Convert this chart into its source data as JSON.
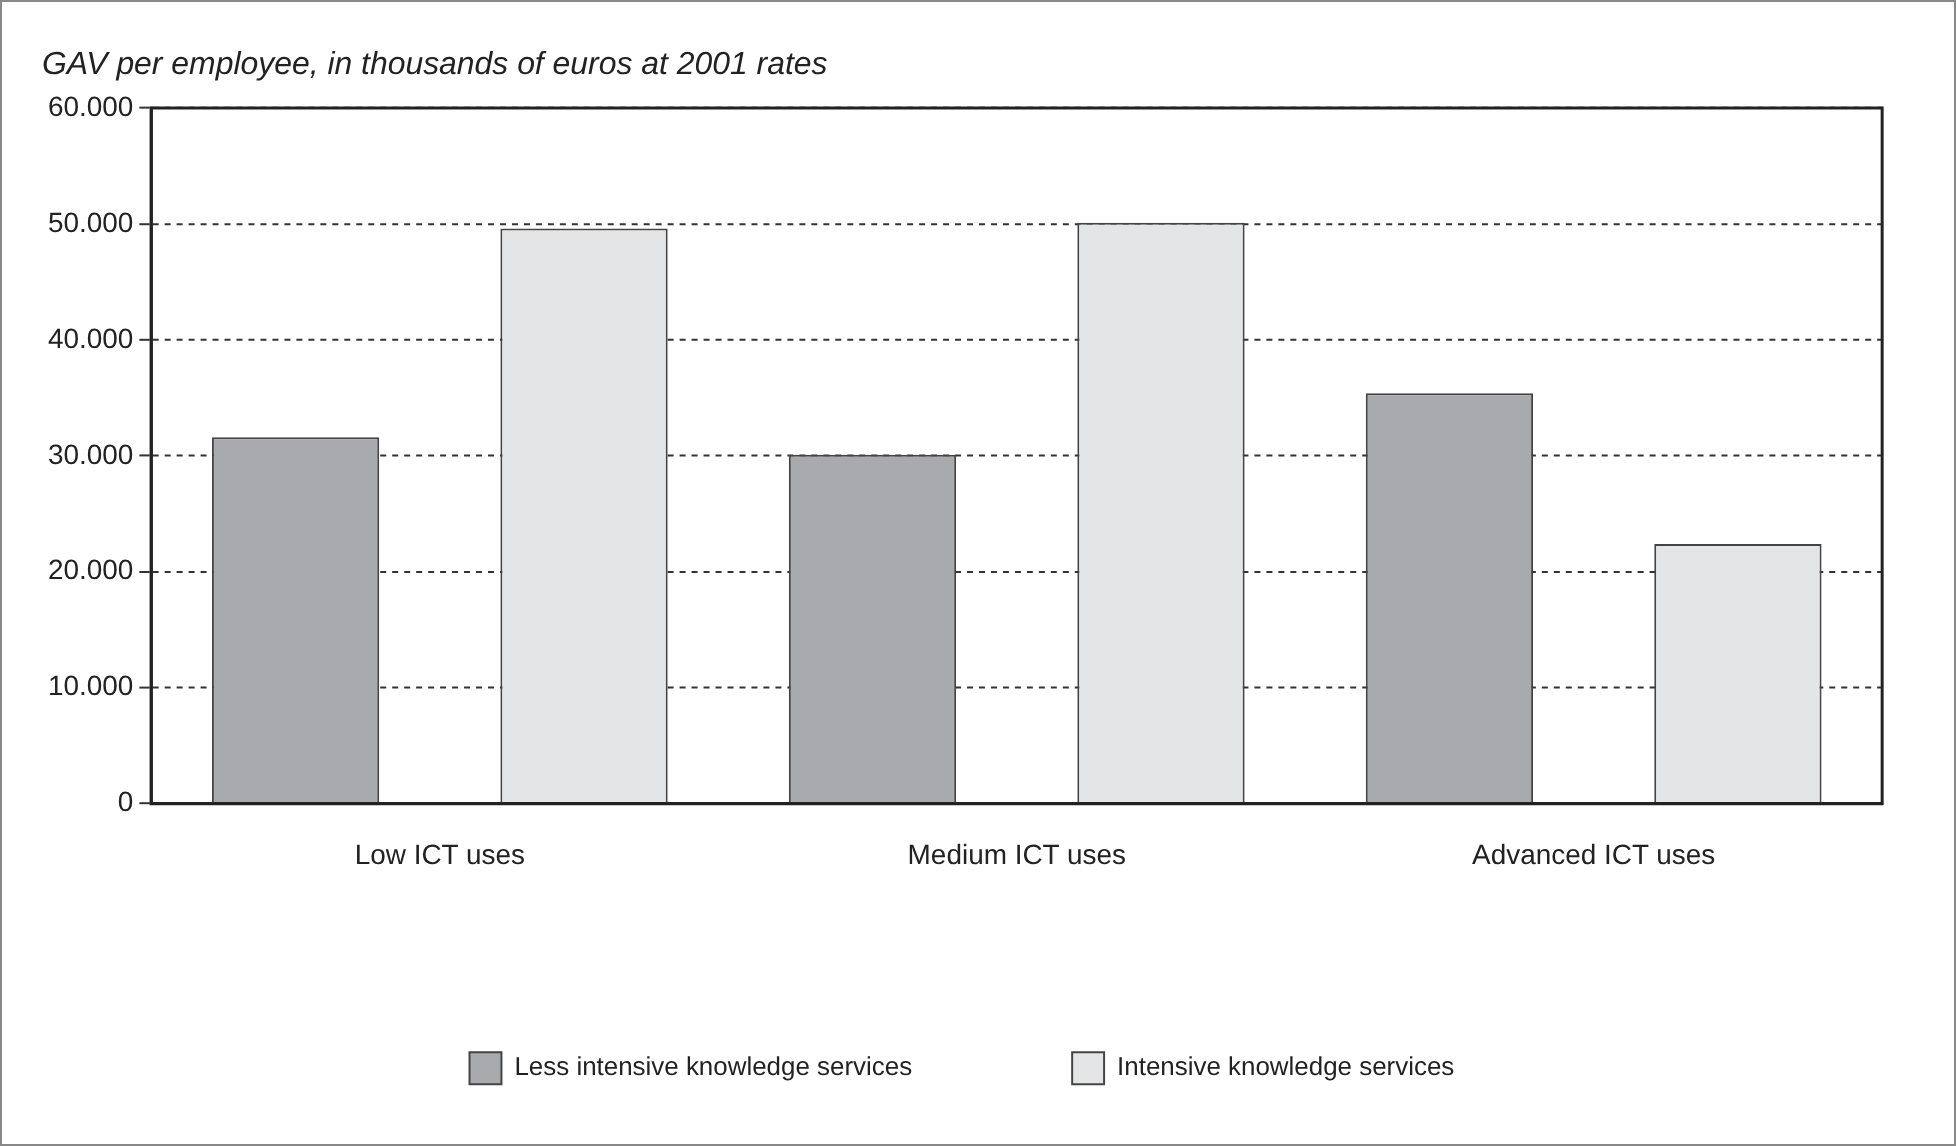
{
  "chart_data": {
    "type": "bar",
    "title": "GAV per employee, in thousands of euros at 2001 rates",
    "categories": [
      "Low ICT uses",
      "Medium ICT uses",
      "Advanced ICT uses"
    ],
    "series": [
      {
        "name": "Less intensive knowledge services",
        "color": "#a9aaad",
        "values": [
          31600,
          30100,
          35400
        ]
      },
      {
        "name": "Intensive knowledge services",
        "color": "#e4e5e7",
        "values": [
          49600,
          50100,
          22400
        ]
      }
    ],
    "ylim": [
      0,
      60000
    ],
    "yticks": [
      0,
      {
        "value": 10000,
        "label": "10.000"
      },
      {
        "value": 20000,
        "label": "20.000"
      },
      {
        "value": 30000,
        "label": "30.000"
      },
      {
        "value": 40000,
        "label": "40.000"
      },
      {
        "value": 50000,
        "label": "50.000"
      },
      {
        "value": 60000,
        "label": "60.000"
      }
    ],
    "grid": "y",
    "legend": "bottom"
  }
}
